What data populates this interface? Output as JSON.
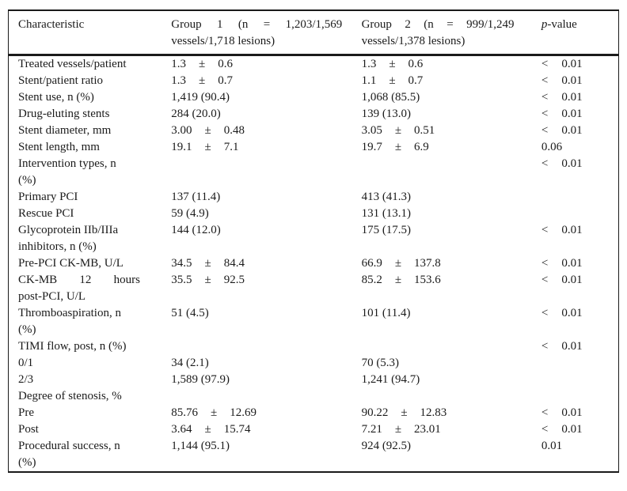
{
  "colors": {
    "background": "#ffffff",
    "text": "#1b1b1b",
    "border": "#1a1a1a"
  },
  "table": {
    "plus_minus_symbol": "±",
    "less_than_symbol": "<",
    "header": {
      "characteristic": "Characteristic",
      "group1_line1": "Group 1 (n = 1,203/1,569",
      "group1_line2": "vessels/1,718 lesions)",
      "group2_line1": "Group 2 (n = 999/1,249",
      "group2_line2": "vessels/1,378 lesions)",
      "pvalue_italic": "p",
      "pvalue_rest": "-value"
    },
    "rows": [
      {
        "label": [
          "Treated vessels/patient"
        ],
        "g1": {
          "mean": "1.3",
          "sd": "0.6"
        },
        "g2": {
          "mean": "1.3",
          "sd": "0.6"
        },
        "p": {
          "lt": true,
          "value": "0.01"
        }
      },
      {
        "label": [
          "Stent/patient ratio"
        ],
        "g1": {
          "mean": "1.3",
          "sd": "0.7"
        },
        "g2": {
          "mean": "1.1",
          "sd": "0.7"
        },
        "p": {
          "lt": true,
          "value": "0.01"
        }
      },
      {
        "label": [
          "Stent use, n (%)"
        ],
        "g1": {
          "text": "1,419 (90.4)"
        },
        "g2": {
          "text": "1,068 (85.5)"
        },
        "p": {
          "lt": true,
          "value": "0.01"
        }
      },
      {
        "label": [
          "Drug-eluting stents"
        ],
        "g1": {
          "text": "284 (20.0)"
        },
        "g2": {
          "text": "139 (13.0)"
        },
        "p": {
          "lt": true,
          "value": "0.01"
        }
      },
      {
        "label": [
          "Stent diameter, mm"
        ],
        "g1": {
          "mean": "3.00",
          "sd": "0.48"
        },
        "g2": {
          "mean": "3.05",
          "sd": "0.51"
        },
        "p": {
          "lt": true,
          "value": "0.01"
        }
      },
      {
        "label": [
          "Stent length, mm"
        ],
        "g1": {
          "mean": "19.1",
          "sd": "7.1"
        },
        "g2": {
          "mean": "19.7",
          "sd": "6.9"
        },
        "p": {
          "lt": false,
          "value": "0.06"
        }
      },
      {
        "label": [
          "Intervention types, n",
          "(%)"
        ],
        "g1": null,
        "g2": null,
        "p": {
          "lt": true,
          "value": "0.01"
        }
      },
      {
        "label": [
          "Primary PCI"
        ],
        "g1": {
          "text": "137 (11.4)"
        },
        "g2": {
          "text": "413 (41.3)"
        },
        "p": null
      },
      {
        "label": [
          "Rescue PCI"
        ],
        "g1": {
          "text": "59 (4.9)"
        },
        "g2": {
          "text": "131 (13.1)"
        },
        "p": null
      },
      {
        "label": [
          "Glycoprotein IIb/IIIa",
          "inhibitors, n (%)"
        ],
        "g1": {
          "text": "144 (12.0)"
        },
        "g2": {
          "text": "175 (17.5)"
        },
        "p": {
          "lt": true,
          "value": "0.01"
        }
      },
      {
        "label": [
          "Pre-PCI CK-MB, U/L"
        ],
        "g1": {
          "mean": "34.5",
          "sd": "84.4"
        },
        "g2": {
          "mean": "66.9",
          "sd": "137.8"
        },
        "p": {
          "lt": true,
          "value": "0.01"
        }
      },
      {
        "label": [
          "CK-MB 12 hours",
          "post-PCI, U/L"
        ],
        "justify_first": true,
        "g1": {
          "mean": "35.5",
          "sd": "92.5"
        },
        "g2": {
          "mean": "85.2",
          "sd": "153.6"
        },
        "p": {
          "lt": true,
          "value": "0.01"
        }
      },
      {
        "label": [
          "Thromboaspiration, n",
          "(%)"
        ],
        "g1": {
          "text": "51 (4.5)"
        },
        "g2": {
          "text": "101 (11.4)"
        },
        "p": {
          "lt": true,
          "value": "0.01"
        }
      },
      {
        "label": [
          "TIMI flow, post, n (%)"
        ],
        "g1": null,
        "g2": null,
        "p": {
          "lt": true,
          "value": "0.01"
        }
      },
      {
        "label": [
          "0/1"
        ],
        "g1": {
          "text": "34 (2.1)"
        },
        "g2": {
          "text": "70 (5.3)"
        },
        "p": null
      },
      {
        "label": [
          "2/3"
        ],
        "g1": {
          "text": "1,589 (97.9)"
        },
        "g2": {
          "text": "1,241 (94.7)"
        },
        "p": null
      },
      {
        "label": [
          "Degree of stenosis, %"
        ],
        "g1": null,
        "g2": null,
        "p": null
      },
      {
        "label": [
          "Pre"
        ],
        "g1": {
          "mean": "85.76",
          "sd": "12.69"
        },
        "g2": {
          "mean": "90.22",
          "sd": "12.83"
        },
        "p": {
          "lt": true,
          "value": "0.01"
        }
      },
      {
        "label": [
          "Post"
        ],
        "g1": {
          "mean": "3.64",
          "sd": "15.74"
        },
        "g2": {
          "mean": "7.21",
          "sd": "23.01"
        },
        "p": {
          "lt": true,
          "value": "0.01"
        }
      },
      {
        "label": [
          "Procedural success, n",
          "(%)"
        ],
        "g1": {
          "text": "1,144 (95.1)"
        },
        "g2": {
          "text": "924 (92.5)"
        },
        "p": {
          "lt": false,
          "value": "0.01"
        }
      }
    ]
  }
}
